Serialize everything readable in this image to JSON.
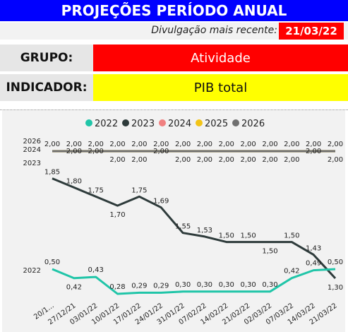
{
  "header": {
    "title": "PROJEÇÕES PERÍODO ANUAL"
  },
  "release": {
    "label": "Divulgação mais recente:",
    "date": "21/03/22"
  },
  "group": {
    "label": "GRUPO:",
    "value": "Atividade"
  },
  "indicator": {
    "label": "INDICADOR:",
    "value": "PIB total"
  },
  "colors": {
    "banner": "#0000ff",
    "group_bg": "#ff0000",
    "indicator_bg": "#ffff00",
    "s2022": "#20c5a8",
    "s2023": "#2e3b3b",
    "s2024": "#f08080",
    "s2025": "#f2c418",
    "s2026": "#707070"
  },
  "chart_data": {
    "type": "line",
    "x": [
      "20/1...",
      "27/12/21",
      "03/01/22",
      "10/01/22",
      "17/01/22",
      "24/01/22",
      "31/01/22",
      "07/02/22",
      "14/02/22",
      "21/02/22",
      "02/03/22",
      "07/03/22",
      "14/03/22",
      "21/03/22"
    ],
    "series": [
      {
        "name": "2022",
        "values": [
          0.5,
          0.42,
          0.43,
          0.28,
          0.29,
          0.29,
          0.3,
          0.3,
          0.3,
          0.3,
          0.3,
          0.42,
          0.49,
          0.5
        ],
        "labels": [
          "0,50",
          "0,42",
          "0,43",
          "0,28",
          "0,29",
          "0,29",
          "0,30",
          "0,30",
          "0,30",
          "0,30",
          "0,30",
          "0,42",
          "0,49",
          "0,50"
        ]
      },
      {
        "name": "2023",
        "values": [
          1.85,
          1.8,
          1.75,
          1.7,
          1.75,
          1.69,
          1.55,
          1.53,
          1.5,
          1.5,
          1.5,
          1.5,
          1.43,
          1.3
        ],
        "labels": [
          "1,85",
          "1,80",
          "1,75",
          "1,70",
          "1,75",
          "1,69",
          "1,55",
          "1,53",
          "1,50",
          "1,50",
          "1,50",
          "1,50",
          "1,43",
          "1,30"
        ]
      },
      {
        "name": "2024",
        "values": [
          2.0,
          2.0,
          2.0,
          2.0,
          2.0,
          2.0,
          2.0,
          2.0,
          2.0,
          2.0,
          2.0,
          2.0,
          2.0,
          2.0
        ],
        "labels": [
          "2,00",
          "2,00",
          "2,00",
          "2,00",
          "2,00",
          "2,00",
          "2,00",
          "2,00",
          "2,00",
          "2,00",
          "2,00",
          "2,00",
          "2,00",
          "2,00"
        ]
      },
      {
        "name": "2025",
        "values": [
          2.0,
          2.0,
          2.0,
          2.0,
          2.0,
          2.0,
          2.0,
          2.0,
          2.0,
          2.0,
          2.0,
          2.0,
          2.0,
          2.0
        ],
        "labels": [
          "2,00",
          "2,00",
          "2,00",
          "2,00",
          "2,00",
          "2,00",
          "2,00",
          "2,00",
          "2,00",
          "2,00",
          "2,00",
          "2,00",
          "2,00",
          "2,00"
        ]
      },
      {
        "name": "2026",
        "values": [
          2.0,
          2.0,
          2.0,
          2.0,
          2.0,
          2.0,
          2.0,
          2.0,
          2.0,
          2.0,
          2.0,
          2.0,
          2.0,
          2.0
        ],
        "labels": [
          "2,00",
          "2,00",
          "2,00",
          "2,00",
          "2,00",
          "2,00",
          "2,00",
          "2,00",
          "2,00",
          "2,00",
          "2,00",
          "2,00",
          "2,00",
          "2,00"
        ]
      }
    ],
    "row_labels": [
      "2026",
      "2024",
      "2023",
      "2022"
    ],
    "legend_position": "top",
    "grid": false
  }
}
